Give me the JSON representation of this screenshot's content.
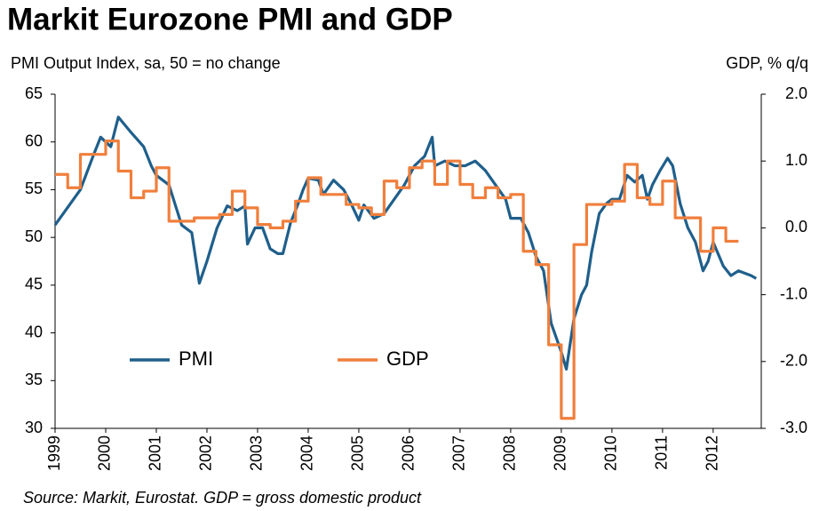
{
  "chart_data": {
    "type": "line",
    "title": "Markit Eurozone PMI and GDP",
    "ylabel": "PMI Output Index, sa, 50 = no change",
    "y2label": "GDP, % q/q",
    "source": "Source: Markit, Eurostat. GDP = gross domestic product",
    "xlim": [
      1999,
      2012.95
    ],
    "xticks": [
      1999,
      2000,
      2001,
      2002,
      2003,
      2004,
      2005,
      2006,
      2007,
      2008,
      2009,
      2010,
      2011,
      2012
    ],
    "ylim": [
      30,
      65
    ],
    "yticks": [
      30,
      35,
      40,
      45,
      50,
      55,
      60,
      65
    ],
    "y2lim": [
      -3,
      2
    ],
    "y2ticks": [
      {
        "value": -3,
        "label": "-3.0"
      },
      {
        "value": -2,
        "label": "-2.0"
      },
      {
        "value": -1,
        "label": "-1.0"
      },
      {
        "value": 0,
        "label": "0.0"
      },
      {
        "value": 1,
        "label": "1.0"
      },
      {
        "value": 2,
        "label": "2.0"
      }
    ],
    "grid": false,
    "series": [
      {
        "name": "PMI",
        "color": "#1f5f8b",
        "step": false,
        "x": [
          1999.0,
          1999.5,
          1999.75,
          1999.9,
          2000.1,
          2000.25,
          2000.5,
          2000.75,
          2000.9,
          2001.0,
          2001.25,
          2001.5,
          2001.7,
          2001.85,
          2002.0,
          2002.2,
          2002.4,
          2002.6,
          2002.75,
          2002.8,
          2002.95,
          2003.1,
          2003.25,
          2003.4,
          2003.5,
          2003.65,
          2003.8,
          2003.9,
          2004.0,
          2004.2,
          2004.3,
          2004.5,
          2004.7,
          2004.85,
          2005.0,
          2005.1,
          2005.3,
          2005.5,
          2005.7,
          2005.9,
          2006.1,
          2006.3,
          2006.45,
          2006.5,
          2006.7,
          2006.9,
          2007.1,
          2007.3,
          2007.5,
          2007.7,
          2007.9,
          2008.0,
          2008.2,
          2008.35,
          2008.5,
          2008.65,
          2008.8,
          2009.0,
          2009.1,
          2009.25,
          2009.4,
          2009.5,
          2009.6,
          2009.75,
          2009.9,
          2010.0,
          2010.15,
          2010.3,
          2010.45,
          2010.6,
          2010.7,
          2010.8,
          2010.95,
          2011.1,
          2011.2,
          2011.35,
          2011.5,
          2011.65,
          2011.8,
          2011.9,
          2012.0,
          2012.2,
          2012.35,
          2012.5,
          2012.75,
          2012.85
        ],
        "values": [
          51.3,
          55,
          58.5,
          60.5,
          59.5,
          62.6,
          61,
          59.5,
          57.5,
          56.5,
          55.5,
          51.3,
          50.5,
          45.2,
          47.5,
          51,
          53.3,
          52.8,
          53.3,
          49.3,
          51,
          51,
          48.8,
          48.3,
          48.3,
          51.5,
          53.5,
          55,
          56.2,
          56,
          54.5,
          56,
          55,
          53.5,
          51.8,
          53.4,
          52,
          52.5,
          54,
          55.5,
          57.5,
          58.5,
          60.5,
          57.5,
          58,
          57.5,
          57.5,
          58,
          57,
          55.5,
          54,
          52,
          52,
          50.5,
          48,
          46.5,
          41,
          38,
          36.2,
          41.5,
          44,
          45,
          48.5,
          52.5,
          53.6,
          54,
          54,
          56.5,
          55.8,
          56.5,
          54,
          55.5,
          57,
          58.3,
          57.5,
          53.5,
          51,
          49.5,
          46.5,
          47.5,
          49.5,
          47,
          46,
          46.5,
          46,
          45.7
        ]
      },
      {
        "name": "GDP",
        "color": "#f07f3c",
        "axis": "y2",
        "step": true,
        "x": [
          1999.0,
          1999.25,
          1999.5,
          1999.75,
          2000.0,
          2000.25,
          2000.5,
          2000.75,
          2001.0,
          2001.25,
          2001.5,
          2001.75,
          2002.0,
          2002.25,
          2002.5,
          2002.75,
          2003.0,
          2003.25,
          2003.5,
          2003.75,
          2004.0,
          2004.25,
          2004.5,
          2004.75,
          2005.0,
          2005.25,
          2005.5,
          2005.75,
          2006.0,
          2006.25,
          2006.5,
          2006.75,
          2007.0,
          2007.25,
          2007.5,
          2007.75,
          2008.0,
          2008.25,
          2008.5,
          2008.75,
          2009.0,
          2009.25,
          2009.5,
          2009.75,
          2010.0,
          2010.25,
          2010.5,
          2010.75,
          2011.0,
          2011.25,
          2011.5,
          2011.75,
          2012.0,
          2012.25
        ],
        "values": [
          0.8,
          0.6,
          1.1,
          1.1,
          1.3,
          0.85,
          0.45,
          0.55,
          0.9,
          0.1,
          0.1,
          0.15,
          0.15,
          0.2,
          0.55,
          0.3,
          0.05,
          0.0,
          0.1,
          0.4,
          0.75,
          0.5,
          0.5,
          0.35,
          0.3,
          0.2,
          0.7,
          0.6,
          0.9,
          1.0,
          0.65,
          1.0,
          0.65,
          0.45,
          0.6,
          0.45,
          0.5,
          -0.35,
          -0.55,
          -1.75,
          -2.85,
          -0.25,
          0.35,
          0.35,
          0.4,
          0.95,
          0.45,
          0.35,
          0.7,
          0.15,
          0.15,
          -0.35,
          0.0,
          -0.2
        ]
      }
    ]
  }
}
